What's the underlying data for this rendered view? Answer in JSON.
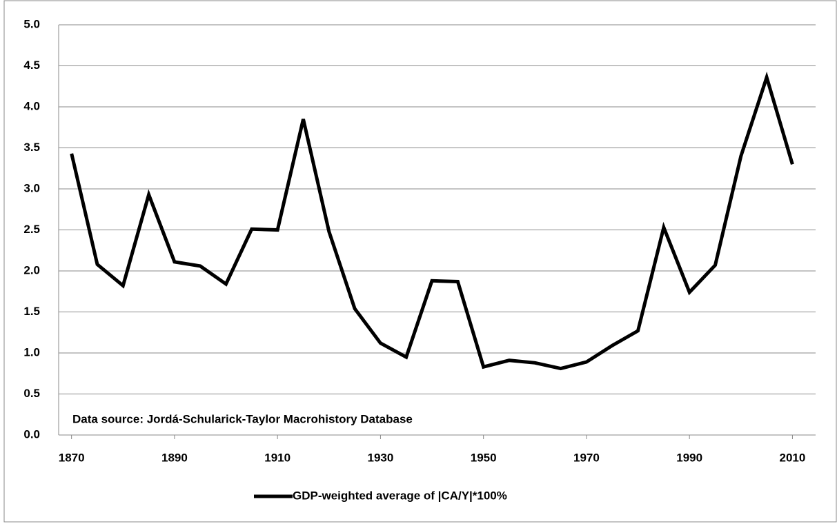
{
  "chart_data": {
    "type": "line",
    "annotation": "Data source: Jordá-Schularick-Taylor Macrohistory Database",
    "x": [
      1870,
      1875,
      1880,
      1885,
      1890,
      1895,
      1900,
      1905,
      1910,
      1915,
      1920,
      1925,
      1930,
      1935,
      1940,
      1945,
      1950,
      1955,
      1960,
      1965,
      1970,
      1975,
      1980,
      1985,
      1990,
      1995,
      2000,
      2005,
      2010
    ],
    "series": [
      {
        "name": "GDP-weighted average of |CA/Y|*100%",
        "color": "#000000",
        "values": [
          3.43,
          2.08,
          1.82,
          2.93,
          2.11,
          2.06,
          1.84,
          2.51,
          2.5,
          3.85,
          2.48,
          1.54,
          1.12,
          0.95,
          1.88,
          1.87,
          0.83,
          0.91,
          0.88,
          0.81,
          0.89,
          1.09,
          1.27,
          2.53,
          1.74,
          2.07,
          3.4,
          4.36,
          3.3
        ]
      }
    ],
    "xlim": [
      1867.5,
      2014.5
    ],
    "xticks": [
      1870,
      1890,
      1910,
      1930,
      1950,
      1970,
      1990,
      2010
    ],
    "ylim": [
      0,
      5
    ],
    "yticks": [
      {
        "value": 0,
        "label": "0.0"
      },
      0.5,
      {
        "value": 1,
        "label": "1.0"
      },
      1.5,
      {
        "value": 2,
        "label": "2.0"
      },
      2.5,
      {
        "value": 3,
        "label": "3.0"
      },
      3.5,
      {
        "value": 4,
        "label": "4.0"
      },
      4.5,
      {
        "value": 5,
        "label": "5.0"
      }
    ],
    "grid": true
  }
}
